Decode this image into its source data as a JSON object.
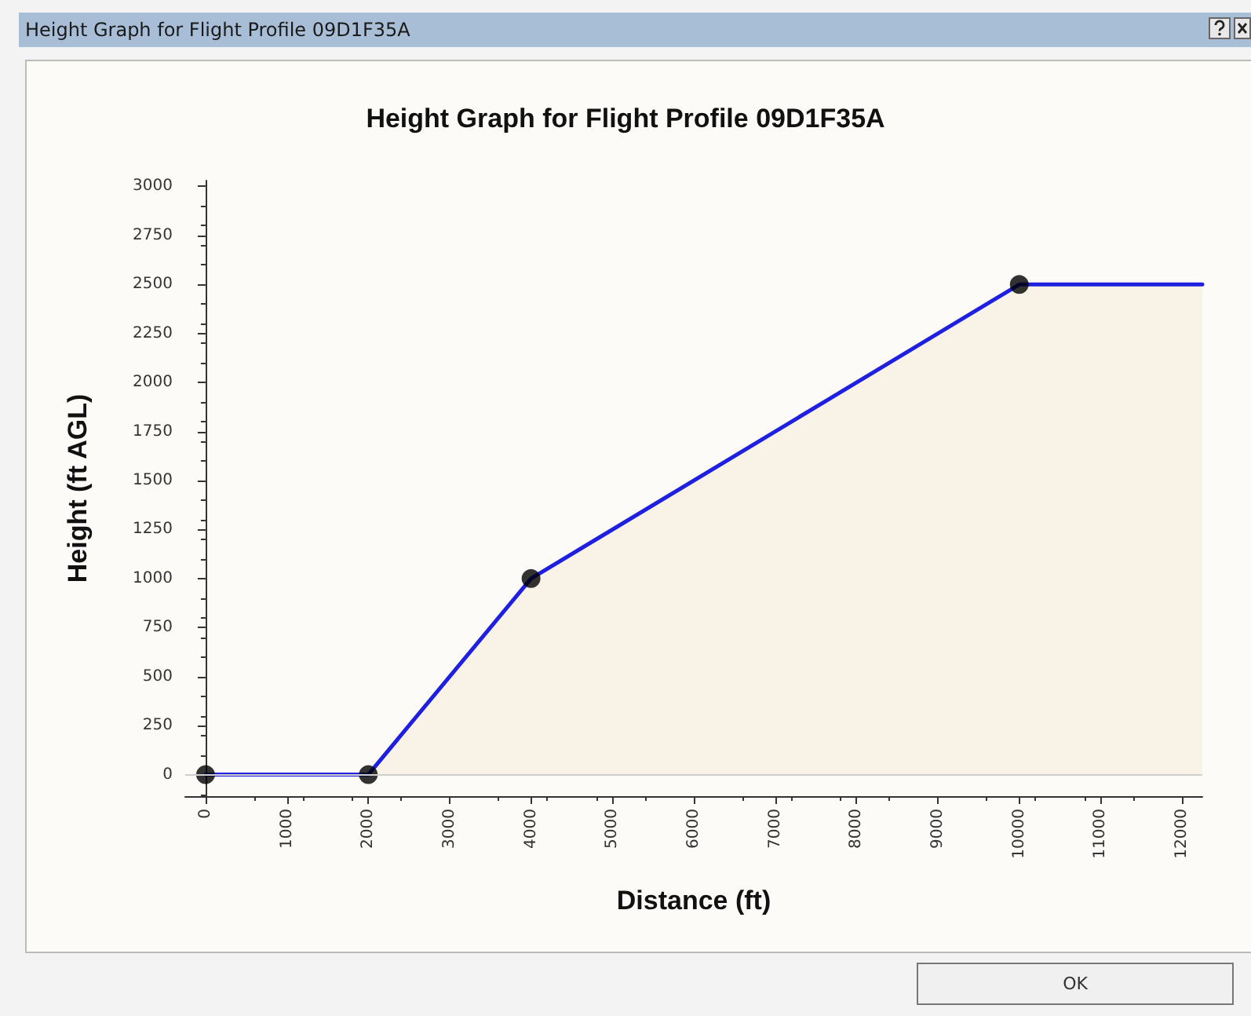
{
  "chart_data": {
    "type": "area",
    "title": "Height Graph for Flight Profile 09D1F35A",
    "xlabel": "Distance (ft)",
    "ylabel": "Height (ft AGL)",
    "annotations": [
      "Height Graph for Flight Profile 09D1F35A",
      "OK"
    ],
    "series": [
      {
        "color": "#1f1fe0",
        "x": [
          0,
          2000,
          4000,
          10000,
          12250
        ],
        "values": [
          0,
          0,
          1000,
          2500,
          2500
        ],
        "marker": "none"
      },
      {
        "type": "scatter",
        "color": "#000000",
        "x": [
          0,
          2000,
          4000,
          10000
        ],
        "values": [
          0,
          0,
          1000,
          2500
        ],
        "marker": "circle"
      }
    ],
    "xlim": [
      -250,
      12250
    ],
    "xticks": [
      0,
      1000,
      2000,
      3000,
      4000,
      5000,
      6000,
      7000,
      8000,
      9000,
      10000,
      11000,
      12000
    ],
    "ylim": [
      -110,
      3030
    ],
    "yticks": [
      0,
      250,
      500,
      750,
      1000,
      1250,
      1500,
      1750,
      2000,
      2250,
      2500,
      2750,
      3000
    ],
    "ref_lines": [
      {
        "axis": "y",
        "value": 0,
        "color": "#cfcfcf"
      }
    ],
    "grid": false,
    "line_style": "solid"
  }
}
